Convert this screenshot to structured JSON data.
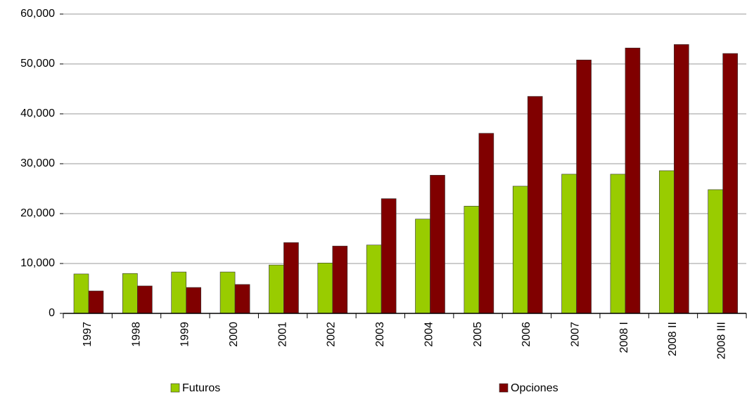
{
  "chart_data": {
    "type": "bar",
    "categories": [
      "1997",
      "1998",
      "1999",
      "2000",
      "2001",
      "2002",
      "2003",
      "2004",
      "2005",
      "2006",
      "2007",
      "2008 I",
      "2008 II",
      "2008 III"
    ],
    "series": [
      {
        "name": "Futuros",
        "color": "#99cc00",
        "values": [
          7900,
          8000,
          8300,
          8300,
          9700,
          10100,
          13700,
          18900,
          21500,
          25500,
          27900,
          27900,
          28600,
          24800
        ]
      },
      {
        "name": "Opciones",
        "color": "#800000",
        "values": [
          4500,
          5500,
          5200,
          5800,
          14200,
          13500,
          23000,
          27700,
          36100,
          43500,
          50800,
          53200,
          53900,
          52100
        ]
      }
    ],
    "ylim": [
      0,
      60000
    ],
    "yticks": [
      0,
      {
        "value": 10000,
        "label": "10,000"
      },
      {
        "value": 20000,
        "label": "20,000"
      },
      {
        "value": 30000,
        "label": "30,000"
      },
      {
        "value": 40000,
        "label": "40,000"
      },
      {
        "value": 50000,
        "label": "50,000"
      },
      {
        "value": 60000,
        "label": "60,000"
      }
    ],
    "grid": true,
    "legend": "bottom"
  }
}
